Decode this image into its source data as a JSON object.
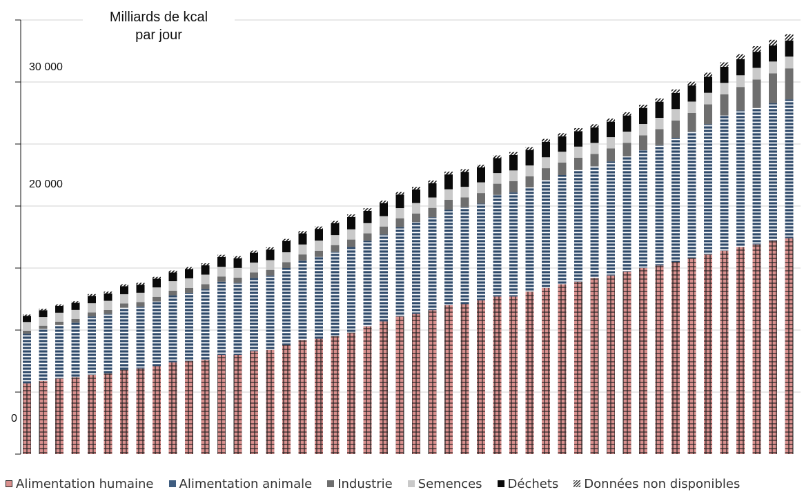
{
  "chart_data": {
    "type": "bar",
    "stacked": true,
    "ylabel": [
      "Milliards de kcal",
      "par jour"
    ],
    "ylim": [
      0,
      35000
    ],
    "y_tick_labels": [
      "0",
      "20 000",
      "30 000"
    ],
    "y_ticks": [
      0,
      5000,
      10000,
      15000,
      20000,
      25000,
      30000,
      35000
    ],
    "grid": true,
    "legend_position": "bottom",
    "n_bars": 48,
    "series": [
      {
        "name": "Alimentation humaine",
        "color": "#d9908e",
        "pattern": "grid",
        "values": [
          5700,
          5900,
          6100,
          6200,
          6400,
          6500,
          6800,
          6900,
          7100,
          7400,
          7500,
          7600,
          8000,
          8000,
          8300,
          8400,
          8800,
          9200,
          9300,
          9500,
          9800,
          10300,
          10700,
          11100,
          11300,
          11600,
          12000,
          12100,
          12400,
          12700,
          12700,
          13100,
          13400,
          13700,
          13900,
          14200,
          14400,
          14700,
          15000,
          15200,
          15500,
          15800,
          16100,
          16400,
          16700,
          16900,
          17200,
          17400
        ]
      },
      {
        "name": "Alimentation animale",
        "color": "#3f5d80",
        "pattern": "hstripe",
        "values": [
          4000,
          4200,
          4300,
          4400,
          4700,
          4800,
          5000,
          5000,
          5200,
          5400,
          5500,
          5700,
          5900,
          5800,
          5900,
          6000,
          6200,
          6400,
          6600,
          6800,
          6900,
          6900,
          7000,
          7200,
          7400,
          7500,
          7700,
          7800,
          7800,
          8200,
          8400,
          8400,
          8700,
          8800,
          9000,
          9000,
          9200,
          9300,
          9500,
          9700,
          10000,
          10200,
          10500,
          10900,
          11000,
          11000,
          11100,
          11200
        ]
      },
      {
        "name": "Industrie",
        "color": "#6e6e6e",
        "pattern": "solid",
        "values": [
          250,
          250,
          280,
          300,
          320,
          320,
          340,
          360,
          380,
          380,
          400,
          400,
          420,
          430,
          450,
          450,
          470,
          500,
          500,
          550,
          600,
          600,
          650,
          700,
          700,
          750,
          800,
          800,
          850,
          900,
          900,
          900,
          950,
          1000,
          1000,
          1000,
          1050,
          1100,
          1200,
          1300,
          1400,
          1500,
          1600,
          1700,
          1900,
          2300,
          2400,
          2500
        ]
      },
      {
        "name": "Semences",
        "color": "#c9c9c9",
        "pattern": "solid",
        "values": [
          700,
          700,
          720,
          720,
          740,
          740,
          750,
          750,
          760,
          760,
          770,
          770,
          780,
          780,
          790,
          790,
          800,
          800,
          810,
          810,
          820,
          820,
          830,
          830,
          840,
          840,
          850,
          850,
          860,
          860,
          870,
          870,
          880,
          880,
          890,
          890,
          900,
          900,
          910,
          910,
          920,
          920,
          930,
          930,
          940,
          940,
          950,
          950
        ]
      },
      {
        "name": "Déchets",
        "color": "#0a0a0a",
        "pattern": "solid",
        "values": [
          500,
          550,
          550,
          580,
          600,
          600,
          650,
          650,
          700,
          700,
          750,
          750,
          800,
          780,
          800,
          850,
          900,
          900,
          950,
          950,
          1000,
          1000,
          1050,
          1100,
          1100,
          1150,
          1200,
          1200,
          1200,
          1200,
          1250,
          1250,
          1250,
          1250,
          1250,
          1250,
          1250,
          1300,
          1300,
          1300,
          1300,
          1300,
          1300,
          1300,
          1300,
          1300,
          1300,
          1300
        ]
      },
      {
        "name": "Données non disponibles",
        "color": "#555555",
        "pattern": "diag",
        "values": [
          100,
          120,
          120,
          120,
          140,
          140,
          150,
          150,
          150,
          160,
          160,
          160,
          170,
          170,
          170,
          180,
          180,
          180,
          190,
          190,
          200,
          200,
          200,
          200,
          200,
          220,
          220,
          220,
          220,
          220,
          230,
          230,
          230,
          240,
          240,
          250,
          250,
          260,
          260,
          270,
          280,
          300,
          320,
          350,
          400,
          450,
          450,
          500
        ]
      }
    ]
  }
}
